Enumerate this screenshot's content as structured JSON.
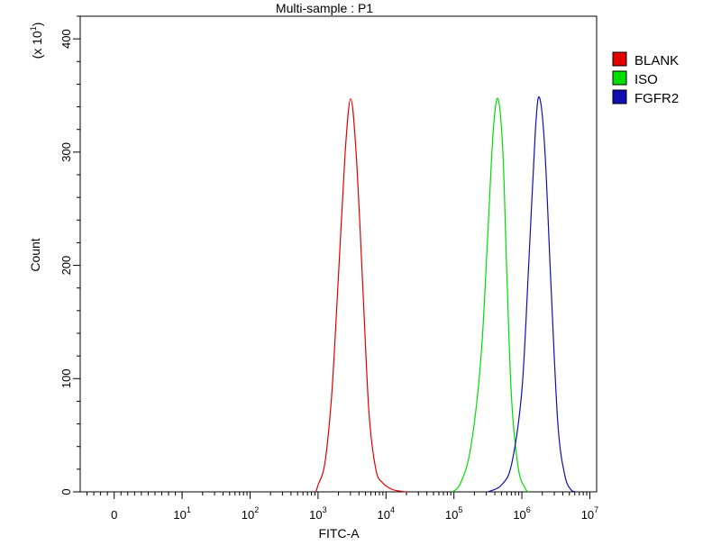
{
  "chart_data": {
    "type": "line",
    "title": "Multi-sample : P1",
    "xlabel": "FITC-A",
    "ylabel": "Count",
    "y_multiplier": {
      "prefix": "(x 10",
      "exp": "1",
      "suffix": ")"
    },
    "x_scale": "log",
    "xlim": [
      -0.5,
      7.1
    ],
    "ylim": [
      0,
      420
    ],
    "x_tick_labels": [
      {
        "value": 0,
        "base": "0",
        "exp": ""
      },
      {
        "value": 1,
        "base": "10",
        "exp": "1"
      },
      {
        "value": 2,
        "base": "10",
        "exp": "2"
      },
      {
        "value": 3,
        "base": "10",
        "exp": "3"
      },
      {
        "value": 4,
        "base": "10",
        "exp": "4"
      },
      {
        "value": 5,
        "base": "10",
        "exp": "5"
      },
      {
        "value": 6,
        "base": "10",
        "exp": "6"
      },
      {
        "value": 7,
        "base": "10",
        "exp": "7"
      }
    ],
    "y_ticks": [
      0,
      100,
      200,
      300,
      400
    ],
    "grid": false,
    "legend_position": "right",
    "series": [
      {
        "name": "BLANK",
        "color": "#e00000",
        "points": [
          [
            2.97,
            0
          ],
          [
            3.0,
            6
          ],
          [
            3.1,
            25
          ],
          [
            3.2,
            85
          ],
          [
            3.3,
            190
          ],
          [
            3.4,
            300
          ],
          [
            3.48,
            347
          ],
          [
            3.56,
            300
          ],
          [
            3.66,
            180
          ],
          [
            3.75,
            70
          ],
          [
            3.85,
            20
          ],
          [
            3.95,
            8
          ],
          [
            4.1,
            2
          ],
          [
            4.3,
            0
          ]
        ]
      },
      {
        "name": "ISO",
        "color": "#00dd00",
        "points": [
          [
            4.98,
            0
          ],
          [
            5.1,
            8
          ],
          [
            5.25,
            40
          ],
          [
            5.4,
            120
          ],
          [
            5.5,
            230
          ],
          [
            5.58,
            320
          ],
          [
            5.65,
            347
          ],
          [
            5.72,
            300
          ],
          [
            5.78,
            190
          ],
          [
            5.85,
            80
          ],
          [
            5.95,
            20
          ],
          [
            6.05,
            3
          ],
          [
            6.1,
            0
          ]
        ]
      },
      {
        "name": "FGFR2",
        "color": "#1010b0",
        "points": [
          [
            5.5,
            0
          ],
          [
            5.7,
            6
          ],
          [
            5.85,
            25
          ],
          [
            6.0,
            90
          ],
          [
            6.1,
            200
          ],
          [
            6.2,
            320
          ],
          [
            6.26,
            348
          ],
          [
            6.34,
            300
          ],
          [
            6.43,
            180
          ],
          [
            6.53,
            60
          ],
          [
            6.63,
            15
          ],
          [
            6.72,
            2
          ],
          [
            6.8,
            0
          ]
        ]
      }
    ]
  }
}
